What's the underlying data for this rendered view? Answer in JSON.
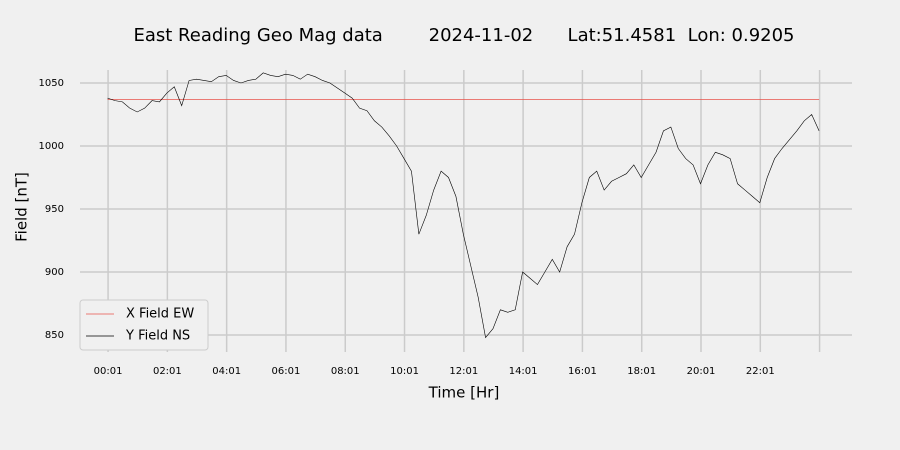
{
  "chart_data": {
    "type": "line",
    "title": "East Reading Geo Mag data        2024-11-02      Lat:51.4581  Lon: 0.9205",
    "x_label": "Time  [Hr]",
    "y_label": "Field  [nT]",
    "x": [
      0,
      0.25,
      0.5,
      0.75,
      1,
      1.25,
      1.5,
      1.75,
      2,
      2.25,
      2.5,
      2.75,
      3,
      3.25,
      3.5,
      3.75,
      4,
      4.25,
      4.5,
      4.75,
      5,
      5.25,
      5.5,
      5.75,
      6,
      6.25,
      6.5,
      6.75,
      7,
      7.25,
      7.5,
      7.75,
      8,
      8.25,
      8.5,
      8.75,
      9,
      9.25,
      9.5,
      9.75,
      10,
      10.25,
      10.5,
      10.75,
      11,
      11.25,
      11.5,
      11.75,
      12,
      12.25,
      12.5,
      12.75,
      13,
      13.25,
      13.5,
      13.75,
      14,
      14.25,
      14.5,
      14.75,
      15,
      15.25,
      15.5,
      15.75,
      16,
      16.25,
      16.5,
      16.75,
      17,
      17.25,
      17.5,
      17.75,
      18,
      18.25,
      18.5,
      18.75,
      19,
      19.25,
      19.5,
      19.75,
      20,
      20.25,
      20.5,
      20.75,
      21,
      21.25,
      21.5,
      21.75,
      22,
      22.25,
      22.5,
      22.75,
      23,
      23.25,
      23.5,
      23.75,
      24
    ],
    "series": [
      {
        "name": "X Field EW",
        "color": "#e8534a",
        "values": [
          1037,
          1037,
          1037,
          1037,
          1037,
          1037,
          1037,
          1037,
          1037,
          1037,
          1037,
          1037,
          1037,
          1037,
          1037,
          1037,
          1037,
          1037,
          1037,
          1037,
          1037,
          1037,
          1037,
          1037,
          1037,
          1037,
          1037,
          1037,
          1037,
          1037,
          1037,
          1037,
          1037,
          1037,
          1037,
          1037,
          1037,
          1037,
          1037,
          1037,
          1037,
          1037,
          1037,
          1037,
          1037,
          1037,
          1037,
          1037,
          1037,
          1037,
          1037,
          1037,
          1037,
          1037,
          1037,
          1037,
          1037,
          1037,
          1037,
          1037,
          1037,
          1037,
          1037,
          1037,
          1037,
          1037,
          1037,
          1037,
          1037,
          1037,
          1037,
          1037,
          1037,
          1037,
          1037,
          1037,
          1037,
          1037,
          1037,
          1037,
          1037,
          1037,
          1037,
          1037,
          1037,
          1037,
          1037,
          1037,
          1037,
          1037,
          1037,
          1037,
          1037,
          1037,
          1037,
          1037,
          1037
        ]
      },
      {
        "name": "Y Field NS",
        "color": "#000000",
        "values": [
          1038,
          1036,
          1035,
          1030,
          1027,
          1030,
          1036,
          1035,
          1042,
          1047,
          1032,
          1052,
          1053,
          1052,
          1051,
          1055,
          1056,
          1052,
          1050,
          1052,
          1053,
          1058,
          1056,
          1055,
          1057,
          1056,
          1053,
          1057,
          1055,
          1052,
          1050,
          1046,
          1042,
          1038,
          1030,
          1028,
          1020,
          1015,
          1008,
          1000,
          990,
          980,
          930,
          945,
          965,
          980,
          975,
          960,
          930,
          905,
          880,
          848,
          855,
          870,
          868,
          870,
          900,
          895,
          890,
          900,
          910,
          900,
          920,
          930,
          955,
          975,
          980,
          965,
          972,
          975,
          978,
          985,
          975,
          985,
          995,
          1012,
          1015,
          998,
          990,
          985,
          970,
          985,
          995,
          993,
          990,
          970,
          965,
          960,
          955,
          975,
          990,
          998,
          1005,
          1012,
          1020,
          1025,
          1012
        ]
      }
    ],
    "xlim": [
      -0.93,
      25.11
    ],
    "ylim": [
      836.5,
      1060.3
    ],
    "xticks": [
      {
        "value": 0.017,
        "label": "00:01"
      },
      {
        "value": 2.017,
        "label": "02:01"
      },
      {
        "value": 4.017,
        "label": "04:01"
      },
      {
        "value": 6.017,
        "label": "06:01"
      },
      {
        "value": 8.017,
        "label": "08:01"
      },
      {
        "value": 10.017,
        "label": "10:01"
      },
      {
        "value": 12.017,
        "label": "12:01"
      },
      {
        "value": 14.017,
        "label": "14:01"
      },
      {
        "value": 16.017,
        "label": "16:01"
      },
      {
        "value": 18.017,
        "label": "18:01"
      },
      {
        "value": 20.017,
        "label": "20:01"
      },
      {
        "value": 22.017,
        "label": "22:01"
      },
      {
        "value": 24.017,
        "label": null
      }
    ],
    "yticks": [
      850,
      900,
      950,
      1000,
      1050
    ],
    "grid": true,
    "legend": "lower left"
  }
}
